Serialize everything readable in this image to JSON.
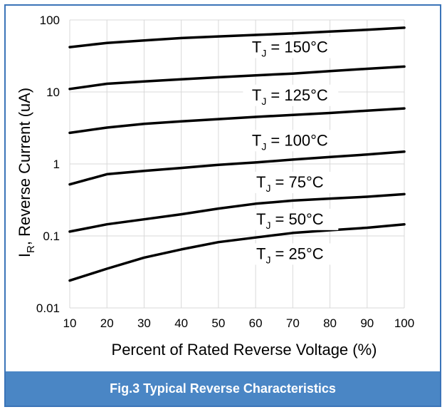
{
  "caption": "Fig.3 Typical Reverse Characteristics",
  "chart_data": {
    "type": "line",
    "title": "",
    "xlabel": "Percent of Rated Reverse Voltage (%)",
    "ylabel_main": "I",
    "ylabel_sub": "R",
    "ylabel_rest": ", Reverse Current (uA)",
    "xscale": "linear",
    "yscale": "log",
    "xlim": [
      10,
      100
    ],
    "ylim": [
      0.01,
      100
    ],
    "grid": true,
    "x_ticks": [
      "10",
      "20",
      "30",
      "40",
      "50",
      "60",
      "70",
      "80",
      "90",
      "100"
    ],
    "y_ticks": [
      "0.01",
      "0.1",
      "1",
      "10",
      "100"
    ],
    "line_color": "#000000",
    "x": [
      10,
      20,
      30,
      40,
      50,
      60,
      70,
      80,
      90,
      100
    ],
    "series": [
      {
        "label_main": "T",
        "label_sub": "J",
        "label_rest": " = 150°C",
        "values": [
          42,
          48,
          52,
          56,
          59,
          62,
          65,
          69,
          73,
          78
        ]
      },
      {
        "label_main": "T",
        "label_sub": "J",
        "label_rest": " = 125°C",
        "values": [
          11,
          13,
          14,
          15,
          16,
          17,
          18,
          19.5,
          21,
          22.5
        ]
      },
      {
        "label_main": "T",
        "label_sub": "J",
        "label_rest": " = 100°C",
        "values": [
          2.7,
          3.2,
          3.6,
          3.9,
          4.2,
          4.5,
          4.8,
          5.1,
          5.5,
          5.9
        ]
      },
      {
        "label_main": "T",
        "label_sub": "J",
        "label_rest": " = 75°C",
        "values": [
          0.52,
          0.72,
          0.8,
          0.88,
          0.97,
          1.05,
          1.15,
          1.25,
          1.35,
          1.48
        ]
      },
      {
        "label_main": "T",
        "label_sub": "J",
        "label_rest": " = 50°C",
        "values": [
          0.115,
          0.145,
          0.17,
          0.2,
          0.24,
          0.28,
          0.31,
          0.33,
          0.35,
          0.38
        ]
      },
      {
        "label_main": "T",
        "label_sub": "J",
        "label_rest": " = 25°C",
        "values": [
          0.024,
          0.035,
          0.05,
          0.065,
          0.082,
          0.095,
          0.11,
          0.12,
          0.13,
          0.145
        ]
      }
    ]
  }
}
